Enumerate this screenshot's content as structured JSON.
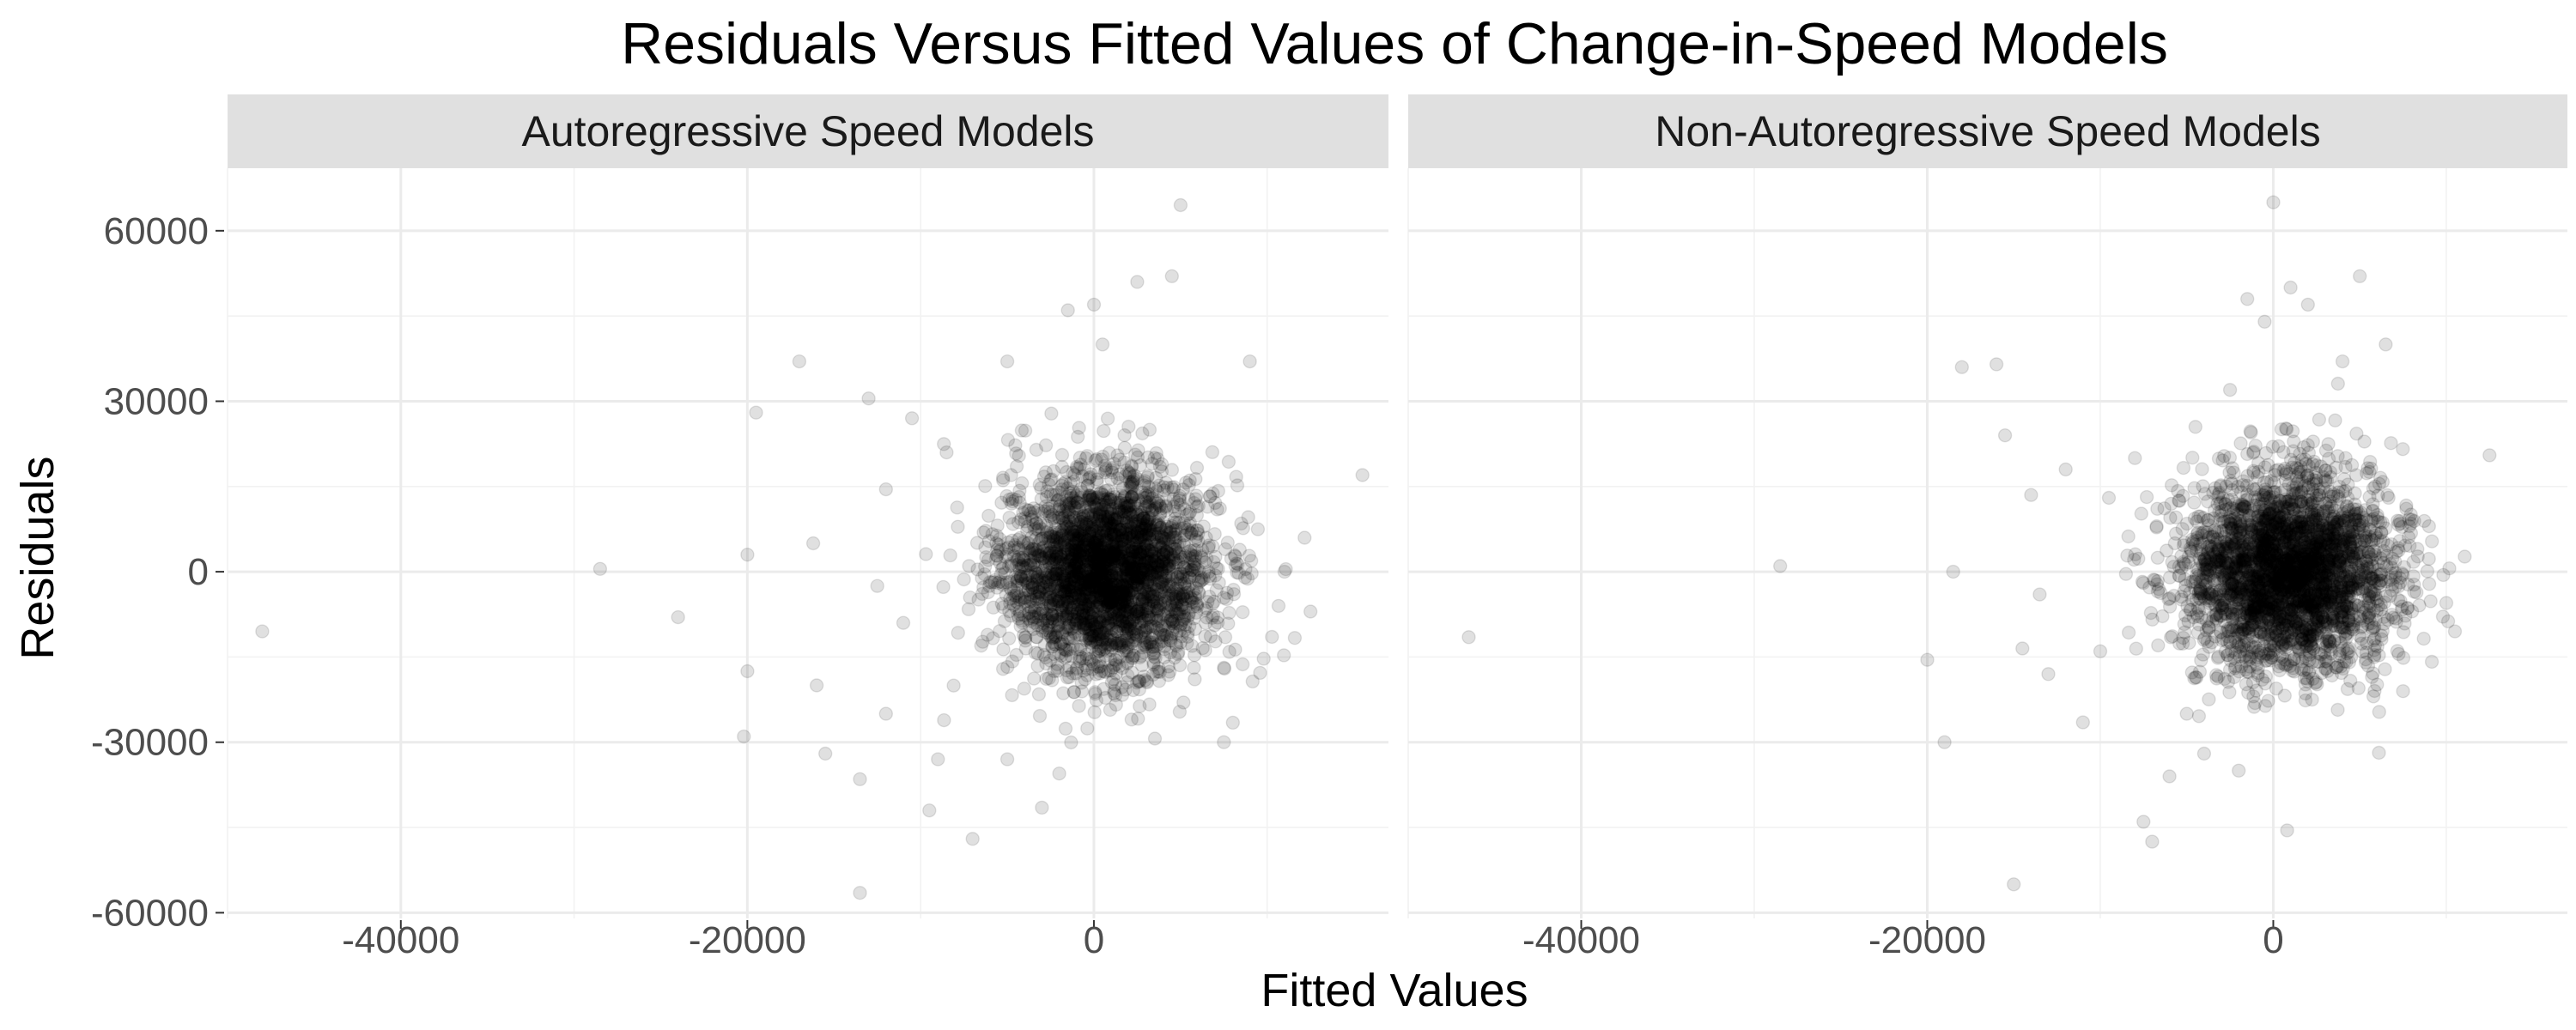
{
  "chart_data": {
    "type": "scatter",
    "title": "Residuals Versus Fitted Values of Change-in-Speed Models",
    "xlabel": "Fitted Values",
    "ylabel": "Residuals",
    "shared_axes": true,
    "xlim": [
      -50000,
      17000
    ],
    "ylim": [
      -61000,
      71000
    ],
    "xticks": [
      -40000,
      -20000,
      0
    ],
    "yticks": [
      -60000,
      -30000,
      0,
      30000,
      60000
    ],
    "grid": true,
    "marker_color": "#000000",
    "marker_opacity": 0.12,
    "panels": [
      {
        "name": "Autoregressive Speed Models",
        "cluster": {
          "x_mean": 800,
          "x_sd": 3000,
          "y_mean": 0,
          "y_sd": 8500,
          "n_approx": 3200
        },
        "outliers": [
          {
            "x": -48000,
            "y": -10500
          },
          {
            "x": -28500,
            "y": 500
          },
          {
            "x": -24000,
            "y": -8000
          },
          {
            "x": -20200,
            "y": -29000
          },
          {
            "x": -20000,
            "y": -17500
          },
          {
            "x": -20000,
            "y": 3000
          },
          {
            "x": -19500,
            "y": 28000
          },
          {
            "x": -17000,
            "y": 37000
          },
          {
            "x": -16200,
            "y": 5000
          },
          {
            "x": -16000,
            "y": -20000
          },
          {
            "x": -15500,
            "y": -32000
          },
          {
            "x": -13500,
            "y": -56500
          },
          {
            "x": -13500,
            "y": -36500
          },
          {
            "x": -13000,
            "y": 30500
          },
          {
            "x": -12500,
            "y": -2500
          },
          {
            "x": -12000,
            "y": -25000
          },
          {
            "x": -12000,
            "y": 14500
          },
          {
            "x": -11000,
            "y": -9000
          },
          {
            "x": -10500,
            "y": 27000
          },
          {
            "x": -9500,
            "y": -42000
          },
          {
            "x": -9000,
            "y": -33000
          },
          {
            "x": -8500,
            "y": 21000
          },
          {
            "x": -7000,
            "y": -47000
          },
          {
            "x": -5000,
            "y": -33000
          },
          {
            "x": -5000,
            "y": 37000
          },
          {
            "x": -3000,
            "y": -41500
          },
          {
            "x": -2000,
            "y": -35500
          },
          {
            "x": -1500,
            "y": 46000
          },
          {
            "x": 0,
            "y": 47000
          },
          {
            "x": 500,
            "y": 40000
          },
          {
            "x": 2500,
            "y": 51000
          },
          {
            "x": 4500,
            "y": 52000
          },
          {
            "x": 5000,
            "y": 64500
          },
          {
            "x": 7500,
            "y": -30000
          },
          {
            "x": 9000,
            "y": 37000
          },
          {
            "x": 11000,
            "y": 0
          },
          {
            "x": 12500,
            "y": -7000
          },
          {
            "x": 15500,
            "y": 17000
          }
        ]
      },
      {
        "name": "Non-Autoregressive Speed Models",
        "cluster": {
          "x_mean": 800,
          "x_sd": 3000,
          "y_mean": 0,
          "y_sd": 8500,
          "n_approx": 3200
        },
        "outliers": [
          {
            "x": -46500,
            "y": -11500
          },
          {
            "x": -28500,
            "y": 1000
          },
          {
            "x": -20000,
            "y": -15500
          },
          {
            "x": -19000,
            "y": -30000
          },
          {
            "x": -18500,
            "y": 0
          },
          {
            "x": -18000,
            "y": 36000
          },
          {
            "x": -16000,
            "y": 36500
          },
          {
            "x": -15500,
            "y": 24000
          },
          {
            "x": -15000,
            "y": -55000
          },
          {
            "x": -14500,
            "y": -13500
          },
          {
            "x": -14000,
            "y": 13500
          },
          {
            "x": -13500,
            "y": -4000
          },
          {
            "x": -13000,
            "y": -18000
          },
          {
            "x": -12000,
            "y": 18000
          },
          {
            "x": -11000,
            "y": -26500
          },
          {
            "x": -10000,
            "y": -14000
          },
          {
            "x": -9500,
            "y": 13000
          },
          {
            "x": -8000,
            "y": 20000
          },
          {
            "x": -7500,
            "y": -44000
          },
          {
            "x": -7000,
            "y": -47500
          },
          {
            "x": -6000,
            "y": -36000
          },
          {
            "x": -5000,
            "y": -25000
          },
          {
            "x": -4500,
            "y": 25500
          },
          {
            "x": -4000,
            "y": -32000
          },
          {
            "x": -2500,
            "y": 32000
          },
          {
            "x": -2000,
            "y": -35000
          },
          {
            "x": -1500,
            "y": 48000
          },
          {
            "x": -500,
            "y": 44000
          },
          {
            "x": 800,
            "y": -45500
          },
          {
            "x": 1000,
            "y": 50000
          },
          {
            "x": 2000,
            "y": 47000
          },
          {
            "x": 4000,
            "y": 37000
          },
          {
            "x": 5000,
            "y": 52000
          },
          {
            "x": 6500,
            "y": 40000
          },
          {
            "x": 7500,
            "y": -21000
          },
          {
            "x": 9000,
            "y": 8000
          },
          {
            "x": 10000,
            "y": -5500
          },
          {
            "x": 10500,
            "y": -10500
          },
          {
            "x": 12500,
            "y": 20500
          },
          {
            "x": 0,
            "y": 65000
          }
        ]
      }
    ]
  }
}
